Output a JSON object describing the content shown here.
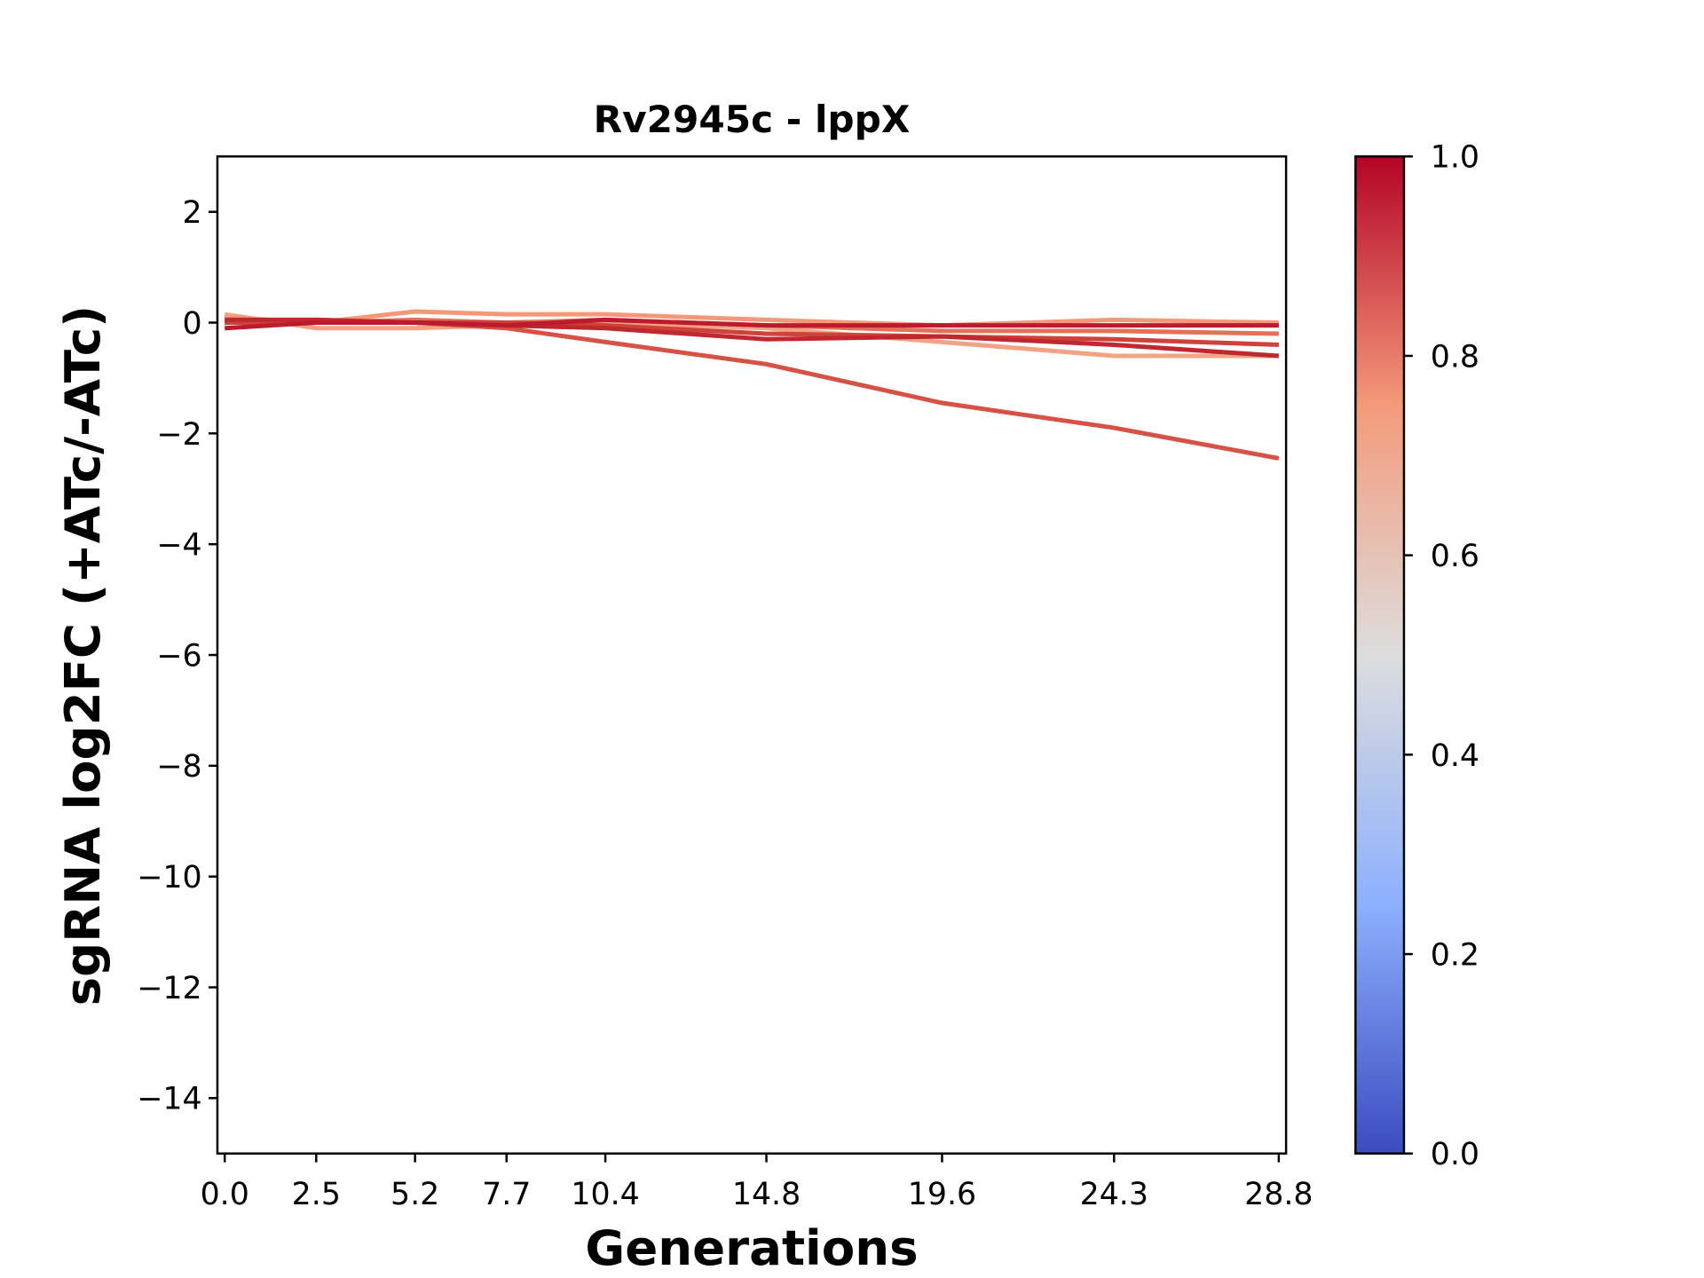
{
  "chart_data": {
    "type": "line",
    "title": "Rv2945c - lppX",
    "x_label": "Generations",
    "y_label": "sgRNA log2FC (+ATc/-ATc)",
    "x": [
      0,
      2.5,
      5.2,
      7.7,
      10.4,
      14.8,
      19.6,
      24.3,
      28.8
    ],
    "xlim": [
      -0.2,
      29.0
    ],
    "xticks": [
      {
        "value": 0,
        "label": "0.0"
      },
      2.5,
      5.2,
      7.7,
      10.4,
      14.8,
      19.6,
      24.3,
      28.8
    ],
    "ylim": [
      -15,
      3
    ],
    "yticks": [
      {
        "value": -14,
        "label": "−14"
      },
      {
        "value": -12,
        "label": "−12"
      },
      {
        "value": -10,
        "label": "−10"
      },
      {
        "value": -8,
        "label": "−8"
      },
      {
        "value": -6,
        "label": "−6"
      },
      {
        "value": -4,
        "label": "−4"
      },
      {
        "value": -2,
        "label": "−2"
      },
      0,
      2
    ],
    "series": [
      {
        "color": "#f2a383",
        "values": [
          0.15,
          -0.1,
          -0.1,
          -0.05,
          0,
          -0.1,
          -0.35,
          -0.6,
          -0.6
        ]
      },
      {
        "color": "#f4987a",
        "values": [
          0.1,
          0,
          0.2,
          0.15,
          0.15,
          0.05,
          -0.05,
          0.05,
          0
        ]
      },
      {
        "color": "#e57058",
        "values": [
          0.05,
          0,
          0.05,
          0,
          0.05,
          -0.05,
          -0.15,
          -0.15,
          -0.2
        ]
      },
      {
        "color": "#d65244",
        "values": [
          0,
          0.05,
          0,
          -0.1,
          -0.35,
          -0.75,
          -1.45,
          -1.9,
          -2.45
        ]
      },
      {
        "color": "#cd423b",
        "values": [
          0,
          0,
          0,
          0,
          -0.05,
          -0.2,
          -0.25,
          -0.3,
          -0.4
        ]
      },
      {
        "color": "#c0282f",
        "values": [
          0.05,
          0.05,
          0,
          -0.05,
          -0.1,
          -0.3,
          -0.25,
          -0.4,
          -0.6
        ]
      },
      {
        "color": "#bb1b2c",
        "values": [
          -0.1,
          0,
          0,
          -0.05,
          0.05,
          -0.05,
          -0.05,
          -0.05,
          -0.05
        ]
      }
    ],
    "colorbar": {
      "colormap": "coolwarm",
      "lim": [
        0,
        1
      ],
      "ticks": [
        {
          "value": 0,
          "label": "0.0"
        },
        0.2,
        0.4,
        0.6,
        0.8,
        {
          "value": 1,
          "label": "1.0"
        }
      ]
    }
  }
}
